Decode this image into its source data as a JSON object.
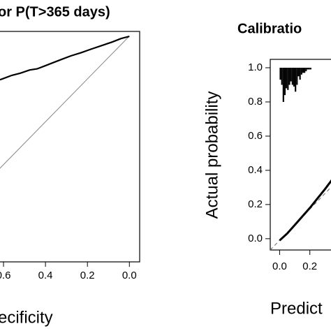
{
  "chart_data": [
    {
      "type": "line",
      "title": "or P(T>365 days)",
      "xlabel": "ecificity",
      "xlim": [
        0.65,
        -0.049
      ],
      "ylim": [
        -0.042,
        1.023
      ],
      "xticks": [
        0.6,
        0.4,
        0.2,
        {
          "value": 0,
          "label": "0.0"
        }
      ],
      "series": [
        {
          "color": "#000000",
          "x": [
            0.65,
            0.607,
            0.56,
            0.52,
            0.475,
            0.44,
            0.41,
            0.36,
            0.32,
            0.279,
            0.23,
            0.18,
            0.13,
            0.082,
            0.04,
            0
          ],
          "values": [
            0.79,
            0.803,
            0.82,
            0.83,
            0.845,
            0.85,
            0.861,
            0.88,
            0.895,
            0.91,
            0.925,
            0.942,
            0.958,
            0.974,
            0.99,
            1.0
          ]
        }
      ]
    },
    {
      "type": "calibration",
      "title": "Calibratio",
      "xlabel": "Predict",
      "ylabel": "Actual probability",
      "xlim": [
        -0.062,
        0.4
      ],
      "ylim": [
        -0.066,
        1.049
      ],
      "xticks": [
        {
          "value": 0,
          "label": "0.0"
        },
        0.2
      ],
      "yticks": [
        {
          "value": 0,
          "label": "0.0"
        },
        0.2,
        0.4,
        0.6,
        0.8,
        {
          "value": 1,
          "label": "1.0"
        }
      ],
      "series": [
        {
          "color": "#000000",
          "x": [
            0,
            0.05,
            0.1,
            0.15,
            0.2,
            0.25,
            0.3,
            0.36
          ],
          "values": [
            -0.01,
            0.03,
            0.08,
            0.13,
            0.18,
            0.235,
            0.29,
            0.36
          ]
        }
      ],
      "histogram": {
        "x": [
          0,
          0.01,
          0.02,
          0.03,
          0.04,
          0.05,
          0.06,
          0.07,
          0.08,
          0.09,
          0.1,
          0.11,
          0.12,
          0.13,
          0.14,
          0.15,
          0.16,
          0.17,
          0.18,
          0.19,
          0.2
        ],
        "values": [
          0.93,
          0.9,
          0.8,
          0.84,
          0.88,
          0.87,
          0.9,
          0.92,
          0.9,
          0.89,
          0.86,
          0.9,
          0.95,
          0.93,
          0.96,
          0.97,
          0.97,
          0.98,
          0.99,
          0.99,
          0.99
        ]
      }
    }
  ]
}
